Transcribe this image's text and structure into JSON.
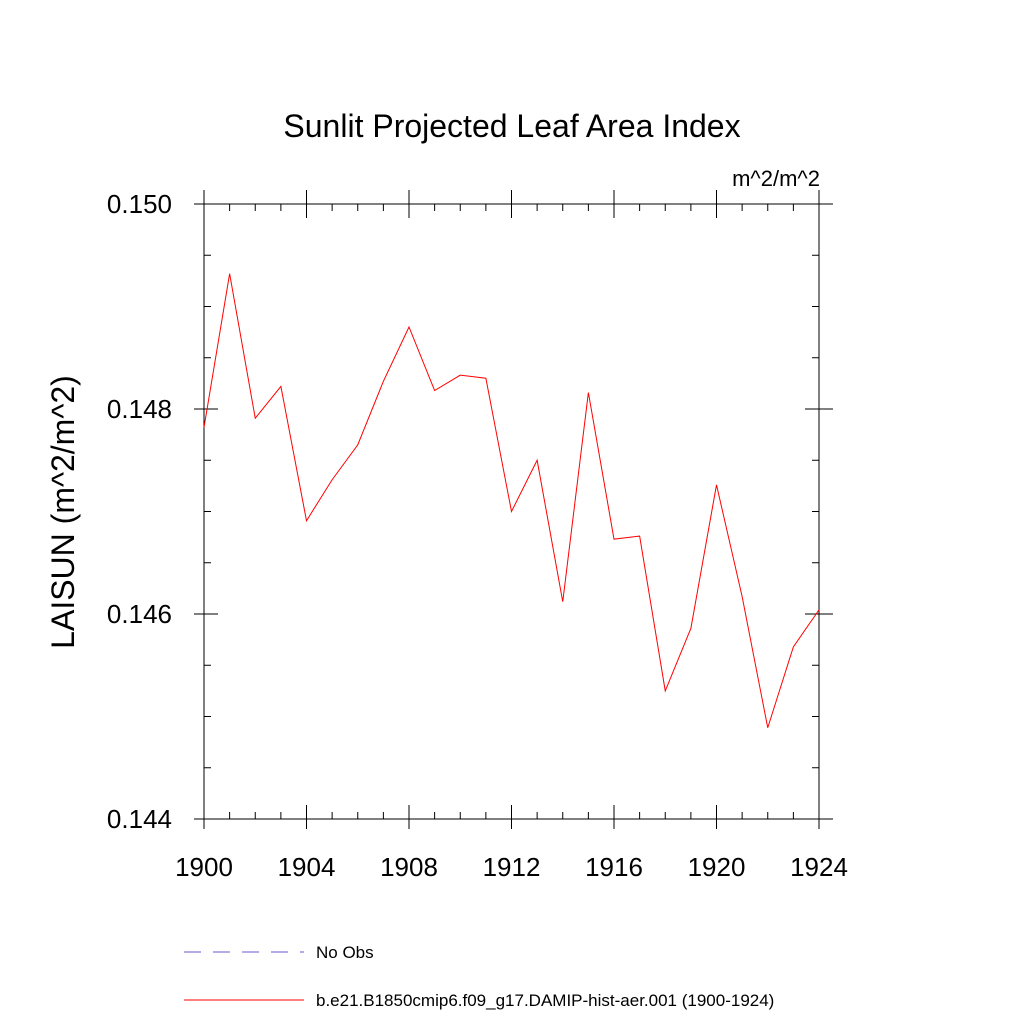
{
  "chart_data": {
    "type": "line",
    "title": "Sunlit Projected Leaf Area Index",
    "units_label": "m^2/m^2",
    "ylabel": "LAISUN  (m^2/m^2)",
    "xlabel": "",
    "xlim": [
      1900,
      1924
    ],
    "ylim": [
      0.144,
      0.15
    ],
    "x_ticks": [
      1900,
      1904,
      1908,
      1912,
      1916,
      1920,
      1924
    ],
    "x_tick_labels": [
      "1900",
      "1904",
      "1908",
      "1912",
      "1916",
      "1920",
      "1924"
    ],
    "y_ticks": [
      0.144,
      0.146,
      0.148,
      0.15
    ],
    "y_tick_labels": [
      "0.144",
      "0.146",
      "0.148",
      "0.150"
    ],
    "series": [
      {
        "name": "b.e21.B1850cmip6.f09_g17.DAMIP-hist-aer.001 (1900-1924)",
        "color": "#ff0000",
        "style": "solid",
        "x": [
          1900,
          1901,
          1902,
          1903,
          1904,
          1905,
          1906,
          1907,
          1908,
          1909,
          1910,
          1911,
          1912,
          1913,
          1914,
          1915,
          1916,
          1917,
          1918,
          1919,
          1920,
          1921,
          1922,
          1923,
          1924
        ],
        "values": [
          0.14782,
          0.14932,
          0.14791,
          0.14822,
          0.14691,
          0.14731,
          0.14765,
          0.14827,
          0.1488,
          0.14818,
          0.14833,
          0.1483,
          0.147,
          0.1475,
          0.14612,
          0.14816,
          0.14673,
          0.14676,
          0.14525,
          0.14586,
          0.14726,
          0.14617,
          0.14489,
          0.14568,
          0.14604
        ]
      }
    ],
    "legend": [
      {
        "label": "No Obs",
        "color": "#6a5acd",
        "style": "dashed"
      },
      {
        "label": "b.e21.B1850cmip6.f09_g17.DAMIP-hist-aer.001 (1900-1924)",
        "color": "#ff0000",
        "style": "solid"
      }
    ]
  }
}
